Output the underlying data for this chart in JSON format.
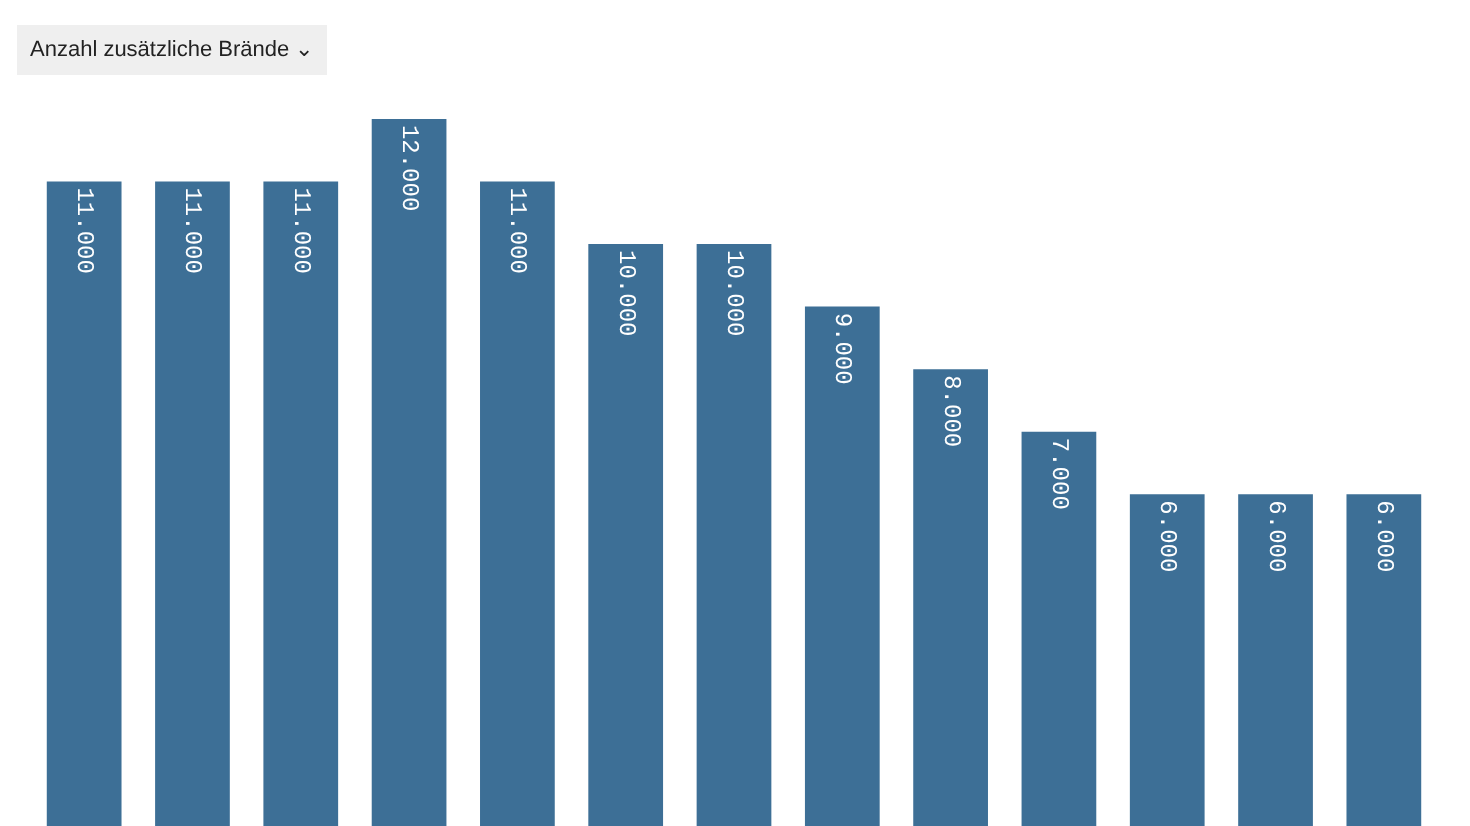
{
  "chart_data": {
    "type": "bar",
    "title": "Anzahl zusätzliche Brände ⌄",
    "categories": [
      null,
      null,
      null,
      null,
      null,
      null,
      null,
      null,
      null,
      null,
      null,
      null,
      null
    ],
    "values": [
      11000,
      11000,
      11000,
      12000,
      11000,
      10000,
      10000,
      9000,
      8000,
      7000,
      6000,
      6000,
      6000
    ],
    "value_labels": [
      "11.000",
      "11.000",
      "11.000",
      "12.000",
      "11.000",
      "10.000",
      "10.000",
      "9.000",
      "8.000",
      "7.000",
      "6.000",
      "6.000",
      "6.000"
    ],
    "color": "#3d6f96",
    "ylim": [
      700,
      13900
    ]
  }
}
